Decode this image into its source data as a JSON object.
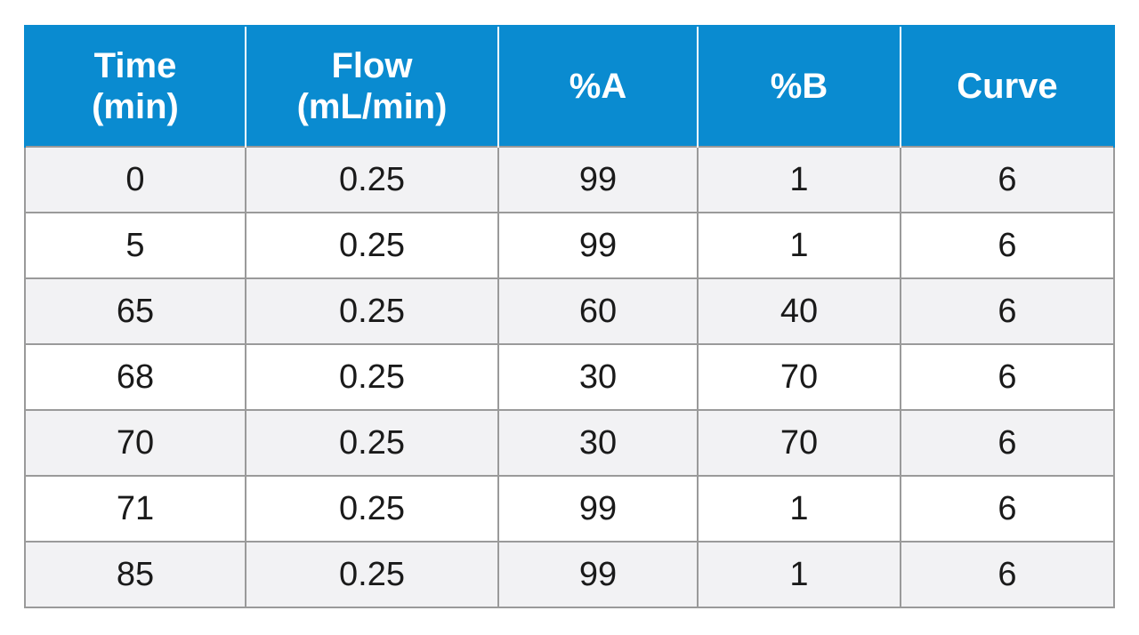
{
  "table": {
    "headers": [
      [
        "Time",
        "(min)"
      ],
      [
        "Flow",
        "(mL/min)"
      ],
      [
        "%A"
      ],
      [
        "%B"
      ],
      [
        "Curve"
      ]
    ],
    "rows": [
      [
        "0",
        "0.25",
        "99",
        "1",
        "6"
      ],
      [
        "5",
        "0.25",
        "99",
        "1",
        "6"
      ],
      [
        "65",
        "0.25",
        "60",
        "40",
        "6"
      ],
      [
        "68",
        "0.25",
        "30",
        "70",
        "6"
      ],
      [
        "70",
        "0.25",
        "30",
        "70",
        "6"
      ],
      [
        "71",
        "0.25",
        "99",
        "1",
        "6"
      ],
      [
        "85",
        "0.25",
        "99",
        "1",
        "6"
      ]
    ],
    "colors": {
      "header_bg": "#0a8bd0",
      "header_text": "#ffffff",
      "row_shade": "#f2f2f4",
      "row_plain": "#ffffff",
      "border": "#9a9a9a"
    }
  }
}
